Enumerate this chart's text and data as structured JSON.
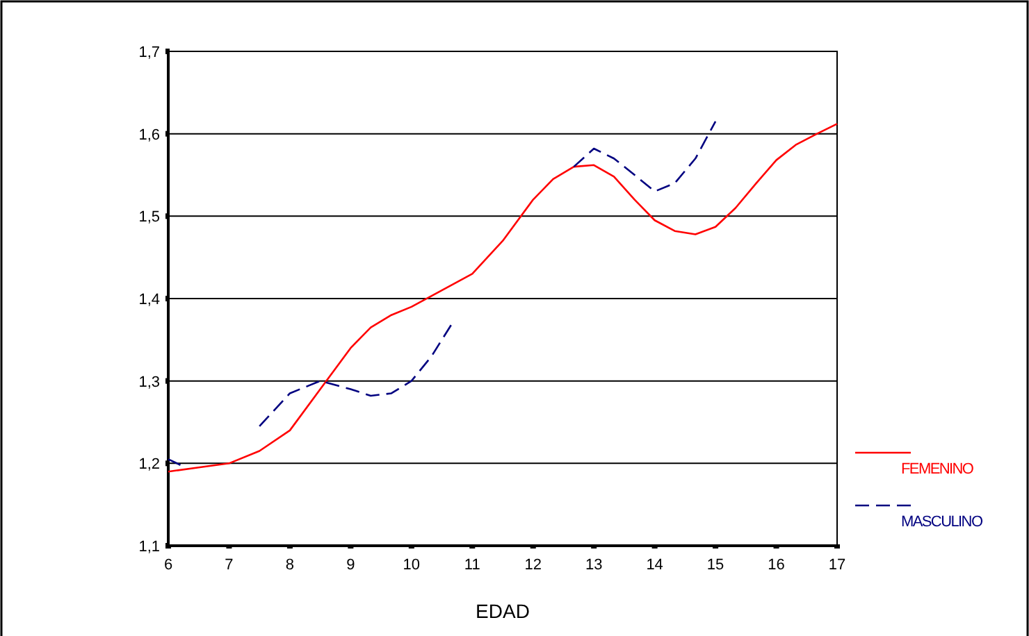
{
  "chart_data": {
    "type": "line",
    "xlabel": "EDAD",
    "xlim": [
      6,
      17
    ],
    "xticks": [
      6,
      7,
      8,
      9,
      10,
      11,
      12,
      13,
      14,
      15,
      16,
      17
    ],
    "ylim": [
      1.1,
      1.7
    ],
    "yticks": [
      {
        "value": 1.1,
        "label": "1,1"
      },
      {
        "value": 1.2,
        "label": "1,2"
      },
      {
        "value": 1.3,
        "label": "1,3"
      },
      {
        "value": 1.4,
        "label": "1,4"
      },
      {
        "value": 1.5,
        "label": "1,5"
      },
      {
        "value": 1.6,
        "label": "1,6"
      },
      {
        "value": 1.7,
        "label": "1,7"
      }
    ],
    "grid": "y",
    "legend": "right",
    "marker": "none",
    "series": [
      {
        "name": "FEMENINO",
        "color": "#ff0000",
        "line_style": "solid",
        "x": [
          6,
          6.5,
          7,
          7.5,
          8,
          8.5,
          9,
          9.33,
          9.67,
          10,
          10.5,
          11,
          11.5,
          12,
          12.33,
          12.67,
          13,
          13.33,
          13.67,
          14,
          14.33,
          14.67,
          15,
          15.33,
          15.67,
          16,
          16.33,
          16.67,
          17
        ],
        "values": [
          1.19,
          1.195,
          1.2,
          1.215,
          1.24,
          1.29,
          1.34,
          1.365,
          1.38,
          1.39,
          1.41,
          1.43,
          1.47,
          1.52,
          1.545,
          1.56,
          1.562,
          1.548,
          1.52,
          1.495,
          1.482,
          1.478,
          1.487,
          1.51,
          1.54,
          1.568,
          1.587,
          1.6,
          1.612
        ]
      },
      {
        "name": "MASCULINO",
        "color": "#000080",
        "line_style": "dashed",
        "x": [
          6,
          6.2,
          6.8,
          7.5,
          8,
          8.5,
          9,
          9.33,
          9.67,
          10,
          10.33,
          10.67,
          11.5,
          12.67,
          13,
          13.33,
          13.67,
          14,
          14.33,
          14.67,
          15
        ],
        "values": [
          1.205,
          1.198,
          null,
          1.245,
          1.285,
          1.3,
          1.29,
          1.282,
          1.285,
          1.3,
          1.33,
          1.37,
          null,
          1.56,
          1.582,
          1.57,
          1.55,
          1.53,
          1.54,
          1.57,
          1.615
        ]
      }
    ]
  }
}
